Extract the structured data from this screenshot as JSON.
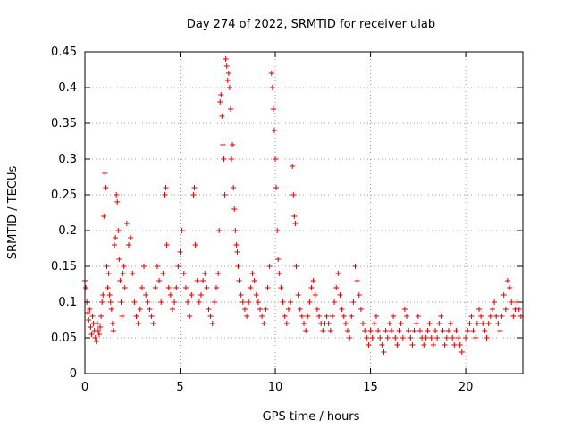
{
  "chart_data": {
    "type": "scatter",
    "title": "Day 274 of 2022, SRMTID for receiver ulab",
    "xlabel": "GPS time / hours",
    "ylabel": "SRMTID / TECUs",
    "xlim": [
      0,
      23
    ],
    "ylim": [
      0,
      0.45
    ],
    "x_ticks": [
      0,
      5,
      10,
      15,
      20
    ],
    "x_tick_labels": [
      "0",
      "5",
      "10",
      "15",
      "20"
    ],
    "y_ticks": [
      0,
      0.05,
      0.1,
      0.15,
      0.2,
      0.25,
      0.3,
      0.35,
      0.4,
      0.45
    ],
    "y_tick_labels": [
      "0",
      "0.05",
      "0.1",
      "0.15",
      "0.2",
      "0.25",
      "0.3",
      "0.35",
      "0.4",
      "0.45"
    ],
    "grid": true,
    "marker": "+",
    "color": "#e00000",
    "series": [
      {
        "name": "SRMTID",
        "points": [
          [
            0.0,
            0.13
          ],
          [
            0.05,
            0.12
          ],
          [
            0.1,
            0.1
          ],
          [
            0.15,
            0.085
          ],
          [
            0.2,
            0.075
          ],
          [
            0.25,
            0.09
          ],
          [
            0.3,
            0.065
          ],
          [
            0.35,
            0.055
          ],
          [
            0.4,
            0.08
          ],
          [
            0.45,
            0.07
          ],
          [
            0.5,
            0.06
          ],
          [
            0.55,
            0.05
          ],
          [
            0.6,
            0.045
          ],
          [
            0.65,
            0.07
          ],
          [
            0.7,
            0.06
          ],
          [
            0.75,
            0.055
          ],
          [
            0.8,
            0.065
          ],
          [
            0.85,
            0.08
          ],
          [
            0.9,
            0.1
          ],
          [
            0.95,
            0.11
          ],
          [
            1.0,
            0.22
          ],
          [
            1.05,
            0.28
          ],
          [
            1.1,
            0.26
          ],
          [
            1.15,
            0.15
          ],
          [
            1.2,
            0.12
          ],
          [
            1.25,
            0.14
          ],
          [
            1.3,
            0.11
          ],
          [
            1.35,
            0.1
          ],
          [
            1.4,
            0.09
          ],
          [
            1.45,
            0.07
          ],
          [
            1.5,
            0.06
          ],
          [
            1.55,
            0.18
          ],
          [
            1.6,
            0.19
          ],
          [
            1.65,
            0.25
          ],
          [
            1.7,
            0.24
          ],
          [
            1.75,
            0.2
          ],
          [
            1.8,
            0.16
          ],
          [
            1.85,
            0.13
          ],
          [
            1.9,
            0.1
          ],
          [
            1.95,
            0.08
          ],
          [
            2.0,
            0.14
          ],
          [
            2.05,
            0.15
          ],
          [
            2.1,
            0.12
          ],
          [
            2.2,
            0.21
          ],
          [
            2.3,
            0.18
          ],
          [
            2.4,
            0.19
          ],
          [
            2.5,
            0.14
          ],
          [
            2.6,
            0.1
          ],
          [
            2.7,
            0.08
          ],
          [
            2.8,
            0.07
          ],
          [
            2.9,
            0.09
          ],
          [
            3.0,
            0.12
          ],
          [
            3.1,
            0.15
          ],
          [
            3.2,
            0.11
          ],
          [
            3.3,
            0.1
          ],
          [
            3.4,
            0.09
          ],
          [
            3.5,
            0.08
          ],
          [
            3.6,
            0.07
          ],
          [
            3.7,
            0.12
          ],
          [
            3.8,
            0.15
          ],
          [
            3.9,
            0.13
          ],
          [
            4.0,
            0.1
          ],
          [
            4.1,
            0.14
          ],
          [
            4.2,
            0.25
          ],
          [
            4.25,
            0.26
          ],
          [
            4.3,
            0.18
          ],
          [
            4.4,
            0.12
          ],
          [
            4.5,
            0.11
          ],
          [
            4.6,
            0.09
          ],
          [
            4.7,
            0.1
          ],
          [
            4.8,
            0.12
          ],
          [
            4.9,
            0.15
          ],
          [
            5.0,
            0.17
          ],
          [
            5.1,
            0.2
          ],
          [
            5.2,
            0.14
          ],
          [
            5.3,
            0.12
          ],
          [
            5.4,
            0.1
          ],
          [
            5.5,
            0.08
          ],
          [
            5.6,
            0.11
          ],
          [
            5.7,
            0.25
          ],
          [
            5.75,
            0.26
          ],
          [
            5.8,
            0.18
          ],
          [
            5.9,
            0.13
          ],
          [
            6.0,
            0.1
          ],
          [
            6.1,
            0.11
          ],
          [
            6.2,
            0.13
          ],
          [
            6.3,
            0.14
          ],
          [
            6.4,
            0.12
          ],
          [
            6.5,
            0.09
          ],
          [
            6.6,
            0.08
          ],
          [
            6.7,
            0.07
          ],
          [
            6.8,
            0.1
          ],
          [
            6.9,
            0.12
          ],
          [
            7.0,
            0.14
          ],
          [
            7.05,
            0.2
          ],
          [
            7.1,
            0.38
          ],
          [
            7.15,
            0.39
          ],
          [
            7.2,
            0.36
          ],
          [
            7.25,
            0.32
          ],
          [
            7.3,
            0.3
          ],
          [
            7.35,
            0.25
          ],
          [
            7.4,
            0.44
          ],
          [
            7.45,
            0.43
          ],
          [
            7.5,
            0.41
          ],
          [
            7.55,
            0.42
          ],
          [
            7.6,
            0.4
          ],
          [
            7.65,
            0.37
          ],
          [
            7.7,
            0.3
          ],
          [
            7.75,
            0.32
          ],
          [
            7.8,
            0.26
          ],
          [
            7.85,
            0.23
          ],
          [
            7.9,
            0.2
          ],
          [
            7.95,
            0.18
          ],
          [
            8.0,
            0.17
          ],
          [
            8.05,
            0.15
          ],
          [
            8.1,
            0.13
          ],
          [
            8.2,
            0.11
          ],
          [
            8.3,
            0.1
          ],
          [
            8.4,
            0.09
          ],
          [
            8.5,
            0.08
          ],
          [
            8.6,
            0.1
          ],
          [
            8.7,
            0.12
          ],
          [
            8.8,
            0.14
          ],
          [
            8.9,
            0.13
          ],
          [
            9.0,
            0.11
          ],
          [
            9.1,
            0.1
          ],
          [
            9.2,
            0.09
          ],
          [
            9.3,
            0.08
          ],
          [
            9.4,
            0.07
          ],
          [
            9.5,
            0.09
          ],
          [
            9.6,
            0.12
          ],
          [
            9.7,
            0.15
          ],
          [
            9.8,
            0.42
          ],
          [
            9.85,
            0.4
          ],
          [
            9.9,
            0.37
          ],
          [
            9.95,
            0.34
          ],
          [
            10.0,
            0.3
          ],
          [
            10.05,
            0.26
          ],
          [
            10.1,
            0.2
          ],
          [
            10.15,
            0.16
          ],
          [
            10.2,
            0.14
          ],
          [
            10.3,
            0.12
          ],
          [
            10.4,
            0.1
          ],
          [
            10.5,
            0.08
          ],
          [
            10.6,
            0.07
          ],
          [
            10.7,
            0.09
          ],
          [
            10.8,
            0.1
          ],
          [
            10.9,
            0.29
          ],
          [
            10.95,
            0.25
          ],
          [
            11.0,
            0.22
          ],
          [
            11.05,
            0.21
          ],
          [
            11.1,
            0.15
          ],
          [
            11.2,
            0.11
          ],
          [
            11.3,
            0.09
          ],
          [
            11.4,
            0.08
          ],
          [
            11.5,
            0.07
          ],
          [
            11.6,
            0.06
          ],
          [
            11.7,
            0.08
          ],
          [
            11.8,
            0.1
          ],
          [
            11.9,
            0.12
          ],
          [
            12.0,
            0.13
          ],
          [
            12.1,
            0.11
          ],
          [
            12.2,
            0.09
          ],
          [
            12.3,
            0.08
          ],
          [
            12.4,
            0.07
          ],
          [
            12.5,
            0.06
          ],
          [
            12.6,
            0.07
          ],
          [
            12.7,
            0.08
          ],
          [
            12.8,
            0.07
          ],
          [
            12.9,
            0.06
          ],
          [
            13.0,
            0.08
          ],
          [
            13.1,
            0.1
          ],
          [
            13.2,
            0.12
          ],
          [
            13.3,
            0.14
          ],
          [
            13.4,
            0.11
          ],
          [
            13.5,
            0.09
          ],
          [
            13.6,
            0.08
          ],
          [
            13.7,
            0.07
          ],
          [
            13.8,
            0.06
          ],
          [
            13.9,
            0.05
          ],
          [
            14.0,
            0.08
          ],
          [
            14.1,
            0.1
          ],
          [
            14.2,
            0.15
          ],
          [
            14.3,
            0.13
          ],
          [
            14.4,
            0.11
          ],
          [
            14.5,
            0.09
          ],
          [
            14.6,
            0.07
          ],
          [
            14.7,
            0.06
          ],
          [
            14.8,
            0.05
          ],
          [
            14.9,
            0.04
          ],
          [
            15.0,
            0.06
          ],
          [
            15.1,
            0.05
          ],
          [
            15.2,
            0.07
          ],
          [
            15.3,
            0.08
          ],
          [
            15.4,
            0.06
          ],
          [
            15.5,
            0.05
          ],
          [
            15.6,
            0.04
          ],
          [
            15.7,
            0.03
          ],
          [
            15.8,
            0.06
          ],
          [
            15.9,
            0.05
          ],
          [
            16.0,
            0.07
          ],
          [
            16.1,
            0.06
          ],
          [
            16.2,
            0.08
          ],
          [
            16.3,
            0.05
          ],
          [
            16.4,
            0.04
          ],
          [
            16.5,
            0.06
          ],
          [
            16.6,
            0.07
          ],
          [
            16.7,
            0.05
          ],
          [
            16.8,
            0.09
          ],
          [
            16.9,
            0.08
          ],
          [
            17.0,
            0.06
          ],
          [
            17.1,
            0.05
          ],
          [
            17.2,
            0.04
          ],
          [
            17.3,
            0.06
          ],
          [
            17.4,
            0.07
          ],
          [
            17.5,
            0.08
          ],
          [
            17.6,
            0.06
          ],
          [
            17.7,
            0.05
          ],
          [
            17.8,
            0.04
          ],
          [
            17.9,
            0.05
          ],
          [
            18.0,
            0.06
          ],
          [
            18.1,
            0.07
          ],
          [
            18.2,
            0.05
          ],
          [
            18.3,
            0.04
          ],
          [
            18.4,
            0.06
          ],
          [
            18.5,
            0.05
          ],
          [
            18.6,
            0.07
          ],
          [
            18.7,
            0.08
          ],
          [
            18.8,
            0.06
          ],
          [
            18.9,
            0.04
          ],
          [
            19.0,
            0.05
          ],
          [
            19.1,
            0.06
          ],
          [
            19.2,
            0.07
          ],
          [
            19.3,
            0.05
          ],
          [
            19.4,
            0.04
          ],
          [
            19.5,
            0.06
          ],
          [
            19.6,
            0.05
          ],
          [
            19.7,
            0.04
          ],
          [
            19.8,
            0.03
          ],
          [
            20.0,
            0.05
          ],
          [
            20.1,
            0.06
          ],
          [
            20.2,
            0.07
          ],
          [
            20.3,
            0.08
          ],
          [
            20.4,
            0.06
          ],
          [
            20.5,
            0.05
          ],
          [
            20.6,
            0.07
          ],
          [
            20.7,
            0.09
          ],
          [
            20.8,
            0.08
          ],
          [
            20.9,
            0.07
          ],
          [
            21.0,
            0.06
          ],
          [
            21.1,
            0.05
          ],
          [
            21.2,
            0.07
          ],
          [
            21.3,
            0.08
          ],
          [
            21.4,
            0.09
          ],
          [
            21.5,
            0.1
          ],
          [
            21.6,
            0.08
          ],
          [
            21.7,
            0.07
          ],
          [
            21.8,
            0.06
          ],
          [
            21.9,
            0.08
          ],
          [
            22.0,
            0.11
          ],
          [
            22.1,
            0.09
          ],
          [
            22.2,
            0.13
          ],
          [
            22.3,
            0.12
          ],
          [
            22.4,
            0.1
          ],
          [
            22.5,
            0.08
          ],
          [
            22.6,
            0.09
          ],
          [
            22.7,
            0.1
          ],
          [
            22.8,
            0.09
          ],
          [
            22.9,
            0.08
          ]
        ]
      }
    ]
  }
}
